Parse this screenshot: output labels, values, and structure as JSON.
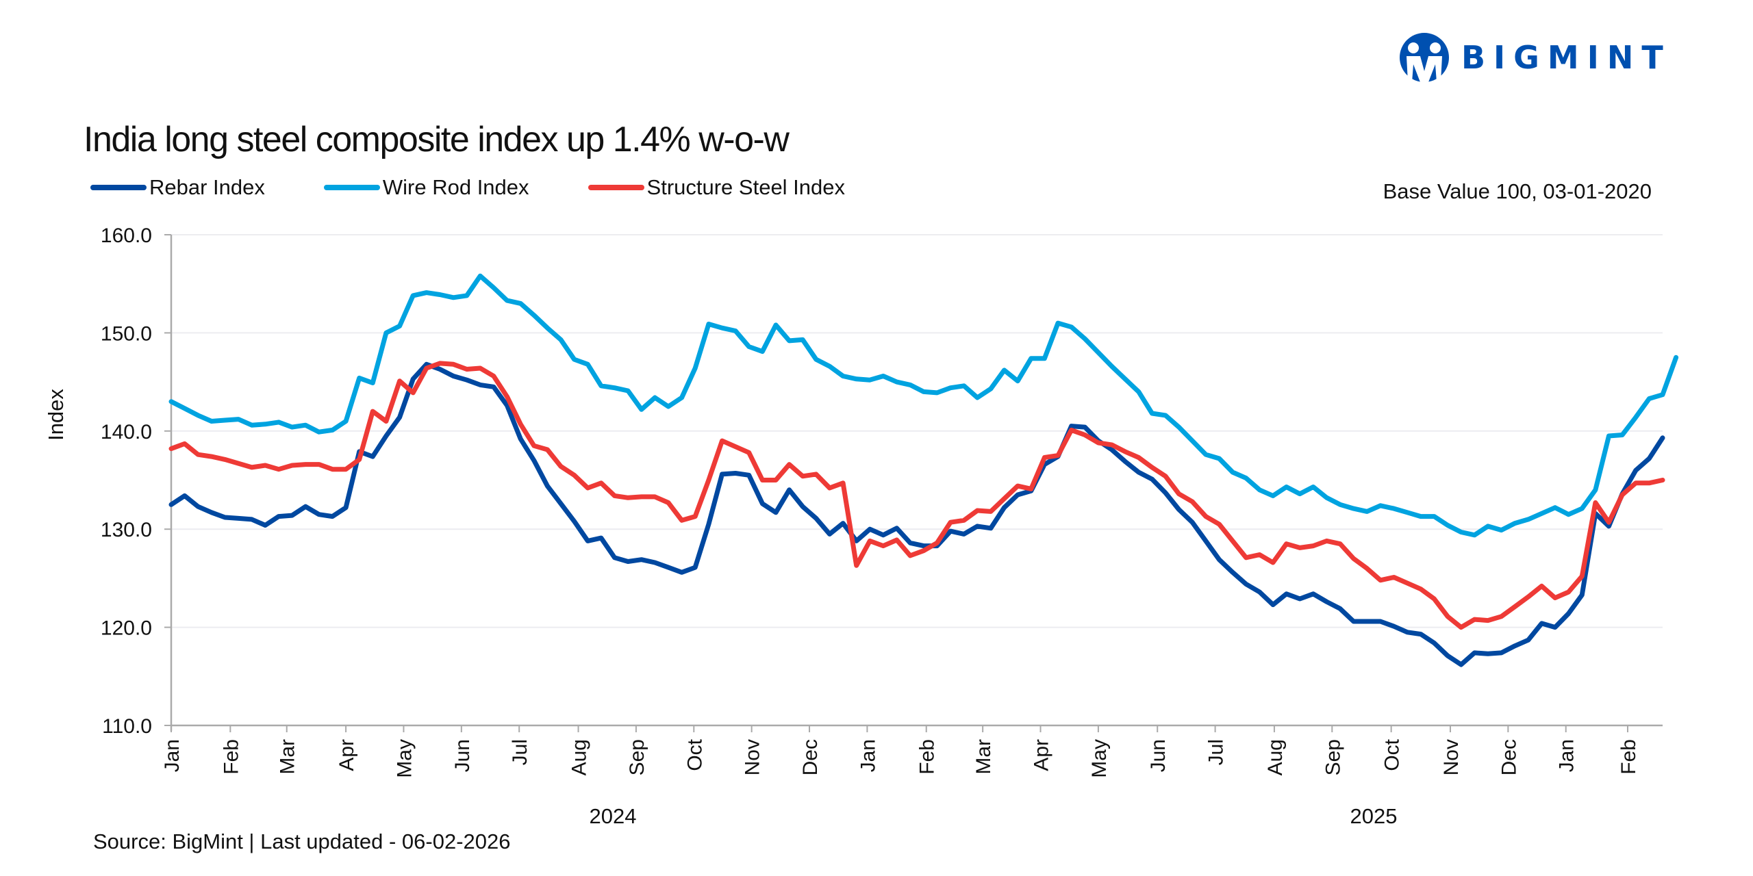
{
  "brand": {
    "name": "BIGMINT",
    "color": "#0050b0"
  },
  "header": {
    "title": "India long steel composite index up 1.4% w-o-w",
    "base_note": "Base Value 100, 03-01-2020"
  },
  "footer": {
    "source": "Source: BigMint | Last updated - 06-02-2026"
  },
  "chart_data": {
    "type": "line",
    "title": "India long steel composite index up 1.4% w-o-w",
    "xlabel": "",
    "ylabel": "Index",
    "ylim": [
      110,
      160
    ],
    "yticks": [
      "110.0",
      "120.0",
      "130.0",
      "140.0",
      "150.0",
      "160.0"
    ],
    "ytick_values": [
      110,
      120,
      130,
      140,
      150,
      160
    ],
    "grid": true,
    "legend_position": "top-left",
    "x_frequency": "weekly",
    "x_start": "Jan 2024",
    "x_end": "Feb 2026",
    "month_ticks": [
      "Jan",
      "Feb",
      "Mar",
      "Apr",
      "May",
      "Jun",
      "Jul",
      "Aug",
      "Sep",
      "Oct",
      "Nov",
      "Dec",
      "Jan",
      "Feb",
      "Mar",
      "Apr",
      "May",
      "Jun",
      "Jul",
      "Aug",
      "Sep",
      "Oct",
      "Nov",
      "Dec",
      "Jan",
      "Feb"
    ],
    "month_tick_positions_weeks": [
      0,
      4.4,
      8.6,
      13,
      17.3,
      21.6,
      25.9,
      30.3,
      34.6,
      38.9,
      43.2,
      47.5,
      51.8,
      56.2,
      60.4,
      64.7,
      69,
      73.4,
      77.7,
      82.1,
      86.4,
      90.8,
      95.2,
      99.5,
      103.8,
      108.4
    ],
    "year_labels": [
      {
        "label": "2024",
        "center_week": 19.5
      },
      {
        "label": "2025",
        "center_week": 53.0
      }
    ],
    "series": [
      {
        "name": "Rebar Index",
        "color": "#0048a0",
        "values": [
          132.5,
          133.4,
          132.3,
          131.7,
          131.2,
          131.1,
          131.0,
          130.4,
          131.3,
          131.4,
          132.3,
          131.5,
          131.3,
          132.2,
          137.9,
          137.4,
          139.5,
          141.4,
          145.3,
          146.8,
          146.3,
          145.6,
          145.2,
          144.7,
          144.5,
          142.6,
          139.2,
          137.0,
          134.4,
          132.6,
          130.8,
          128.8,
          129.1,
          127.1,
          126.7,
          126.9,
          126.6,
          126.1,
          125.6,
          126.1,
          130.5,
          135.6,
          135.7,
          135.5,
          132.6,
          131.7,
          134.0,
          132.3,
          131.1,
          129.5,
          130.6,
          128.8,
          130.0,
          129.4,
          130.1,
          128.6,
          128.3,
          128.3,
          129.8,
          129.5,
          130.3,
          130.1,
          132.2,
          133.5,
          133.9,
          136.6,
          137.4,
          140.5,
          140.4,
          139.0,
          138.1,
          136.9,
          135.8,
          135.1,
          133.7,
          132.0,
          130.7,
          128.8,
          126.9,
          125.6,
          124.4,
          123.6,
          122.3,
          123.4,
          122.9,
          123.4,
          122.6,
          121.9,
          120.6,
          120.6,
          120.6,
          120.1,
          119.5,
          119.3,
          118.4,
          117.1,
          116.2,
          117.4,
          117.3,
          117.4,
          118.1,
          118.7,
          120.4,
          120.0,
          121.4,
          123.3,
          131.6,
          130.3,
          133.6,
          136.0,
          137.2,
          139.3
        ]
      },
      {
        "name": "Wire Rod Index",
        "color": "#00a3e0",
        "values": [
          143.0,
          142.3,
          141.6,
          141.0,
          141.1,
          141.2,
          140.6,
          140.7,
          140.9,
          140.4,
          140.6,
          139.9,
          140.1,
          141.0,
          145.4,
          144.9,
          150.0,
          150.7,
          153.8,
          154.1,
          153.9,
          153.6,
          153.8,
          155.8,
          154.6,
          153.3,
          153.0,
          151.8,
          150.5,
          149.3,
          147.3,
          146.8,
          144.6,
          144.4,
          144.1,
          142.2,
          143.4,
          142.5,
          143.4,
          146.4,
          150.9,
          150.5,
          150.2,
          148.6,
          148.1,
          150.8,
          149.2,
          149.3,
          147.3,
          146.6,
          145.6,
          145.3,
          145.2,
          145.6,
          145.0,
          144.7,
          144.0,
          143.9,
          144.4,
          144.6,
          143.4,
          144.3,
          146.2,
          145.1,
          147.4,
          147.4,
          151.0,
          150.6,
          149.4,
          148.0,
          146.6,
          145.3,
          144.0,
          141.8,
          141.6,
          140.4,
          139.0,
          137.6,
          137.2,
          135.8,
          135.2,
          134.0,
          133.4,
          134.3,
          133.6,
          134.3,
          133.2,
          132.5,
          132.1,
          131.8,
          132.4,
          132.1,
          131.7,
          131.3,
          131.3,
          130.4,
          129.7,
          129.4,
          130.3,
          129.9,
          130.6,
          131.0,
          131.6,
          132.2,
          131.5,
          132.1,
          134.0,
          139.5,
          139.6,
          141.4,
          143.3,
          143.7,
          147.5
        ]
      },
      {
        "name": "Structure Steel Index",
        "color": "#ee3a36",
        "values": [
          138.2,
          138.7,
          137.6,
          137.4,
          137.1,
          136.7,
          136.3,
          136.5,
          136.1,
          136.5,
          136.6,
          136.6,
          136.1,
          136.1,
          137.1,
          142.0,
          141.0,
          145.1,
          143.9,
          146.4,
          146.9,
          146.8,
          146.3,
          146.4,
          145.6,
          143.5,
          140.7,
          138.5,
          138.1,
          136.4,
          135.5,
          134.2,
          134.7,
          133.4,
          133.2,
          133.3,
          133.3,
          132.7,
          130.9,
          131.3,
          135.0,
          139.0,
          138.4,
          137.8,
          135.0,
          135.0,
          136.6,
          135.4,
          135.6,
          134.2,
          134.7,
          126.3,
          128.8,
          128.3,
          128.9,
          127.3,
          127.8,
          128.6,
          130.7,
          130.9,
          131.9,
          131.8,
          133.1,
          134.4,
          134.1,
          137.3,
          137.5,
          140.1,
          139.6,
          138.8,
          138.6,
          137.9,
          137.3,
          136.3,
          135.4,
          133.6,
          132.8,
          131.3,
          130.5,
          128.8,
          127.1,
          127.4,
          126.6,
          128.5,
          128.1,
          128.3,
          128.8,
          128.5,
          127.0,
          126.0,
          124.8,
          125.1,
          124.5,
          123.9,
          122.9,
          121.1,
          120.0,
          120.8,
          120.7,
          121.1,
          122.1,
          123.1,
          124.2,
          123.0,
          123.6,
          125.2,
          132.7,
          130.7,
          133.5,
          134.7,
          134.7,
          135.0
        ]
      }
    ]
  }
}
